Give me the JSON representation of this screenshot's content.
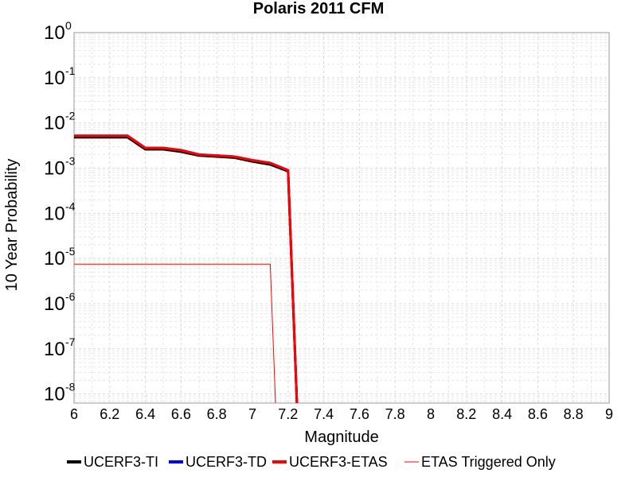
{
  "chart_data": {
    "type": "line",
    "title": "Polaris 2011 CFM",
    "xlabel": "Magnitude",
    "ylabel": "10 Year Probability",
    "xlim": [
      6,
      9
    ],
    "ylim_log10": [
      -8.2,
      0
    ],
    "y_scale": "log",
    "grid": true,
    "legend_position": "bottom",
    "x_ticks": [
      "6",
      "6.2",
      "6.4",
      "6.6",
      "6.8",
      "7",
      "7.2",
      "7.4",
      "7.6",
      "7.8",
      "8",
      "8.2",
      "8.4",
      "8.6",
      "8.8",
      "9"
    ],
    "y_ticks": [
      {
        "base": "10",
        "exp": "0",
        "log": 0
      },
      {
        "base": "10",
        "exp": "-1",
        "log": -1
      },
      {
        "base": "10",
        "exp": "-2",
        "log": -2
      },
      {
        "base": "10",
        "exp": "-3",
        "log": -3
      },
      {
        "base": "10",
        "exp": "-4",
        "log": -4
      },
      {
        "base": "10",
        "exp": "-5",
        "log": -5
      },
      {
        "base": "10",
        "exp": "-6",
        "log": -6
      },
      {
        "base": "10",
        "exp": "-7",
        "log": -7
      },
      {
        "base": "10",
        "exp": "-8",
        "log": -8
      }
    ],
    "series": [
      {
        "name": "UCERF3-TI",
        "color": "#000000",
        "width": 3,
        "x": [
          6.0,
          6.3,
          6.4,
          6.5,
          6.6,
          6.7,
          6.8,
          6.9,
          7.0,
          7.1,
          7.2,
          7.25
        ],
        "y": [
          0.0048,
          0.0048,
          0.0026,
          0.0026,
          0.0023,
          0.0019,
          0.0018,
          0.0017,
          0.0014,
          0.0012,
          0.00085,
          1e-09
        ]
      },
      {
        "name": "UCERF3-TD",
        "color": "#0000ff",
        "width": 3,
        "x": [
          6.0,
          6.3,
          6.4,
          6.5,
          6.6,
          6.7,
          6.8,
          6.9,
          7.0,
          7.1,
          7.2,
          7.25
        ],
        "y": [
          0.0052,
          0.0052,
          0.0028,
          0.0028,
          0.0025,
          0.002,
          0.0019,
          0.0018,
          0.0015,
          0.0013,
          0.0009,
          1e-09
        ]
      },
      {
        "name": "UCERF3-ETAS",
        "color": "#ff0000",
        "width": 3,
        "x": [
          6.0,
          6.3,
          6.4,
          6.5,
          6.6,
          6.7,
          6.8,
          6.9,
          7.0,
          7.1,
          7.2,
          7.25
        ],
        "y": [
          0.0052,
          0.0052,
          0.0028,
          0.0028,
          0.0025,
          0.002,
          0.0019,
          0.0018,
          0.0015,
          0.0013,
          0.0009,
          1e-09
        ]
      },
      {
        "name": "ETAS Triggered Only",
        "color": "#ff0000",
        "width": 1,
        "x": [
          6.0,
          7.1,
          7.13
        ],
        "y": [
          7.5e-06,
          7.5e-06,
          1e-09
        ]
      }
    ]
  }
}
